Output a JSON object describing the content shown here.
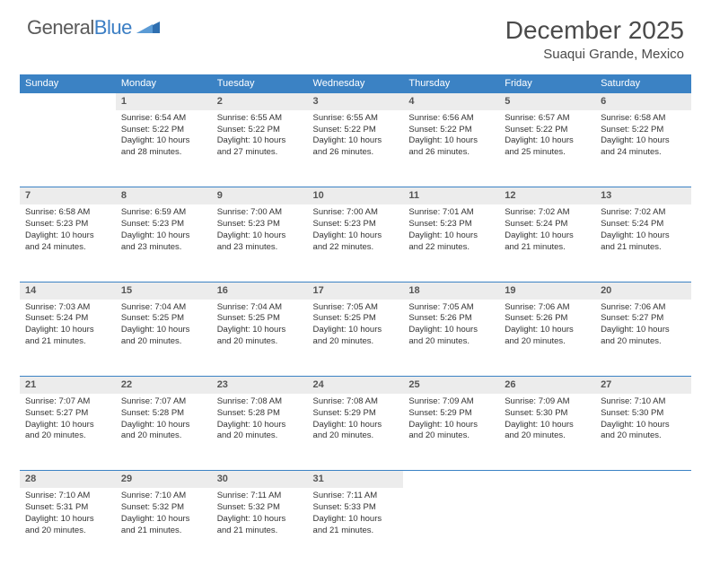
{
  "brand": {
    "part1": "General",
    "part2": "Blue"
  },
  "title": "December 2025",
  "location": "Suaqui Grande, Mexico",
  "colors": {
    "header_bg": "#3b82c4",
    "header_text": "#ffffff",
    "daynum_bg": "#ececec",
    "text": "#333333",
    "logo_gray": "#5a5a5a",
    "logo_blue": "#3b7ec4"
  },
  "weekdays": [
    "Sunday",
    "Monday",
    "Tuesday",
    "Wednesday",
    "Thursday",
    "Friday",
    "Saturday"
  ],
  "weeks": [
    {
      "nums": [
        "",
        "1",
        "2",
        "3",
        "4",
        "5",
        "6"
      ],
      "cells": [
        null,
        {
          "sr": "Sunrise: 6:54 AM",
          "ss": "Sunset: 5:22 PM",
          "d1": "Daylight: 10 hours",
          "d2": "and 28 minutes."
        },
        {
          "sr": "Sunrise: 6:55 AM",
          "ss": "Sunset: 5:22 PM",
          "d1": "Daylight: 10 hours",
          "d2": "and 27 minutes."
        },
        {
          "sr": "Sunrise: 6:55 AM",
          "ss": "Sunset: 5:22 PM",
          "d1": "Daylight: 10 hours",
          "d2": "and 26 minutes."
        },
        {
          "sr": "Sunrise: 6:56 AM",
          "ss": "Sunset: 5:22 PM",
          "d1": "Daylight: 10 hours",
          "d2": "and 26 minutes."
        },
        {
          "sr": "Sunrise: 6:57 AM",
          "ss": "Sunset: 5:22 PM",
          "d1": "Daylight: 10 hours",
          "d2": "and 25 minutes."
        },
        {
          "sr": "Sunrise: 6:58 AM",
          "ss": "Sunset: 5:22 PM",
          "d1": "Daylight: 10 hours",
          "d2": "and 24 minutes."
        }
      ]
    },
    {
      "nums": [
        "7",
        "8",
        "9",
        "10",
        "11",
        "12",
        "13"
      ],
      "cells": [
        {
          "sr": "Sunrise: 6:58 AM",
          "ss": "Sunset: 5:23 PM",
          "d1": "Daylight: 10 hours",
          "d2": "and 24 minutes."
        },
        {
          "sr": "Sunrise: 6:59 AM",
          "ss": "Sunset: 5:23 PM",
          "d1": "Daylight: 10 hours",
          "d2": "and 23 minutes."
        },
        {
          "sr": "Sunrise: 7:00 AM",
          "ss": "Sunset: 5:23 PM",
          "d1": "Daylight: 10 hours",
          "d2": "and 23 minutes."
        },
        {
          "sr": "Sunrise: 7:00 AM",
          "ss": "Sunset: 5:23 PM",
          "d1": "Daylight: 10 hours",
          "d2": "and 22 minutes."
        },
        {
          "sr": "Sunrise: 7:01 AM",
          "ss": "Sunset: 5:23 PM",
          "d1": "Daylight: 10 hours",
          "d2": "and 22 minutes."
        },
        {
          "sr": "Sunrise: 7:02 AM",
          "ss": "Sunset: 5:24 PM",
          "d1": "Daylight: 10 hours",
          "d2": "and 21 minutes."
        },
        {
          "sr": "Sunrise: 7:02 AM",
          "ss": "Sunset: 5:24 PM",
          "d1": "Daylight: 10 hours",
          "d2": "and 21 minutes."
        }
      ]
    },
    {
      "nums": [
        "14",
        "15",
        "16",
        "17",
        "18",
        "19",
        "20"
      ],
      "cells": [
        {
          "sr": "Sunrise: 7:03 AM",
          "ss": "Sunset: 5:24 PM",
          "d1": "Daylight: 10 hours",
          "d2": "and 21 minutes."
        },
        {
          "sr": "Sunrise: 7:04 AM",
          "ss": "Sunset: 5:25 PM",
          "d1": "Daylight: 10 hours",
          "d2": "and 20 minutes."
        },
        {
          "sr": "Sunrise: 7:04 AM",
          "ss": "Sunset: 5:25 PM",
          "d1": "Daylight: 10 hours",
          "d2": "and 20 minutes."
        },
        {
          "sr": "Sunrise: 7:05 AM",
          "ss": "Sunset: 5:25 PM",
          "d1": "Daylight: 10 hours",
          "d2": "and 20 minutes."
        },
        {
          "sr": "Sunrise: 7:05 AM",
          "ss": "Sunset: 5:26 PM",
          "d1": "Daylight: 10 hours",
          "d2": "and 20 minutes."
        },
        {
          "sr": "Sunrise: 7:06 AM",
          "ss": "Sunset: 5:26 PM",
          "d1": "Daylight: 10 hours",
          "d2": "and 20 minutes."
        },
        {
          "sr": "Sunrise: 7:06 AM",
          "ss": "Sunset: 5:27 PM",
          "d1": "Daylight: 10 hours",
          "d2": "and 20 minutes."
        }
      ]
    },
    {
      "nums": [
        "21",
        "22",
        "23",
        "24",
        "25",
        "26",
        "27"
      ],
      "cells": [
        {
          "sr": "Sunrise: 7:07 AM",
          "ss": "Sunset: 5:27 PM",
          "d1": "Daylight: 10 hours",
          "d2": "and 20 minutes."
        },
        {
          "sr": "Sunrise: 7:07 AM",
          "ss": "Sunset: 5:28 PM",
          "d1": "Daylight: 10 hours",
          "d2": "and 20 minutes."
        },
        {
          "sr": "Sunrise: 7:08 AM",
          "ss": "Sunset: 5:28 PM",
          "d1": "Daylight: 10 hours",
          "d2": "and 20 minutes."
        },
        {
          "sr": "Sunrise: 7:08 AM",
          "ss": "Sunset: 5:29 PM",
          "d1": "Daylight: 10 hours",
          "d2": "and 20 minutes."
        },
        {
          "sr": "Sunrise: 7:09 AM",
          "ss": "Sunset: 5:29 PM",
          "d1": "Daylight: 10 hours",
          "d2": "and 20 minutes."
        },
        {
          "sr": "Sunrise: 7:09 AM",
          "ss": "Sunset: 5:30 PM",
          "d1": "Daylight: 10 hours",
          "d2": "and 20 minutes."
        },
        {
          "sr": "Sunrise: 7:10 AM",
          "ss": "Sunset: 5:30 PM",
          "d1": "Daylight: 10 hours",
          "d2": "and 20 minutes."
        }
      ]
    },
    {
      "nums": [
        "28",
        "29",
        "30",
        "31",
        "",
        "",
        ""
      ],
      "cells": [
        {
          "sr": "Sunrise: 7:10 AM",
          "ss": "Sunset: 5:31 PM",
          "d1": "Daylight: 10 hours",
          "d2": "and 20 minutes."
        },
        {
          "sr": "Sunrise: 7:10 AM",
          "ss": "Sunset: 5:32 PM",
          "d1": "Daylight: 10 hours",
          "d2": "and 21 minutes."
        },
        {
          "sr": "Sunrise: 7:11 AM",
          "ss": "Sunset: 5:32 PM",
          "d1": "Daylight: 10 hours",
          "d2": "and 21 minutes."
        },
        {
          "sr": "Sunrise: 7:11 AM",
          "ss": "Sunset: 5:33 PM",
          "d1": "Daylight: 10 hours",
          "d2": "and 21 minutes."
        },
        null,
        null,
        null
      ]
    }
  ]
}
